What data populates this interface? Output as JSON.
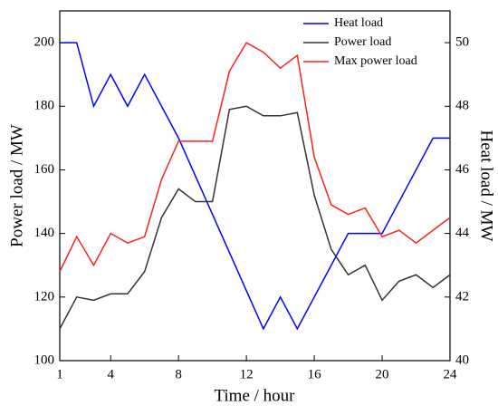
{
  "chart_data": {
    "type": "line",
    "x": [
      1,
      2,
      3,
      4,
      5,
      6,
      7,
      8,
      9,
      10,
      11,
      12,
      13,
      14,
      15,
      16,
      17,
      18,
      19,
      20,
      21,
      22,
      23,
      24
    ],
    "xlabel": "Time / hour",
    "ylabel": "Power load / MW",
    "y2label": "Heat load / MW",
    "xlim": [
      1,
      24
    ],
    "xticks": [
      1,
      4,
      8,
      12,
      16,
      20,
      24
    ],
    "ylim": [
      100,
      210
    ],
    "yticks": [
      100,
      120,
      140,
      160,
      180,
      200
    ],
    "y2lim": [
      40,
      51
    ],
    "y2ticks": [
      40,
      42,
      44,
      46,
      48,
      50
    ],
    "legend": "upper right",
    "series": [
      {
        "name": "Heat load",
        "color": "#0000ff",
        "axis": "y2",
        "values": [
          50,
          50,
          48,
          49,
          48,
          49,
          48,
          47,
          45.8,
          44.6,
          43.4,
          42.2,
          41,
          42,
          41,
          42,
          43,
          44,
          44,
          44,
          45,
          46,
          47,
          47
        ]
      },
      {
        "name": "Power load",
        "color": "#333333",
        "values": [
          110,
          120,
          119,
          121,
          121,
          128,
          145,
          154,
          150,
          150,
          179,
          180,
          177,
          177,
          178,
          152,
          135,
          127,
          130,
          119,
          125,
          127,
          123,
          127
        ]
      },
      {
        "name": "Max power load",
        "color": "#ff2020",
        "values": [
          128,
          139,
          130,
          140,
          137,
          139,
          157,
          169,
          169,
          169,
          191,
          200,
          197,
          192,
          196,
          164,
          149,
          146,
          148,
          139,
          141,
          137,
          141,
          145
        ]
      }
    ]
  }
}
